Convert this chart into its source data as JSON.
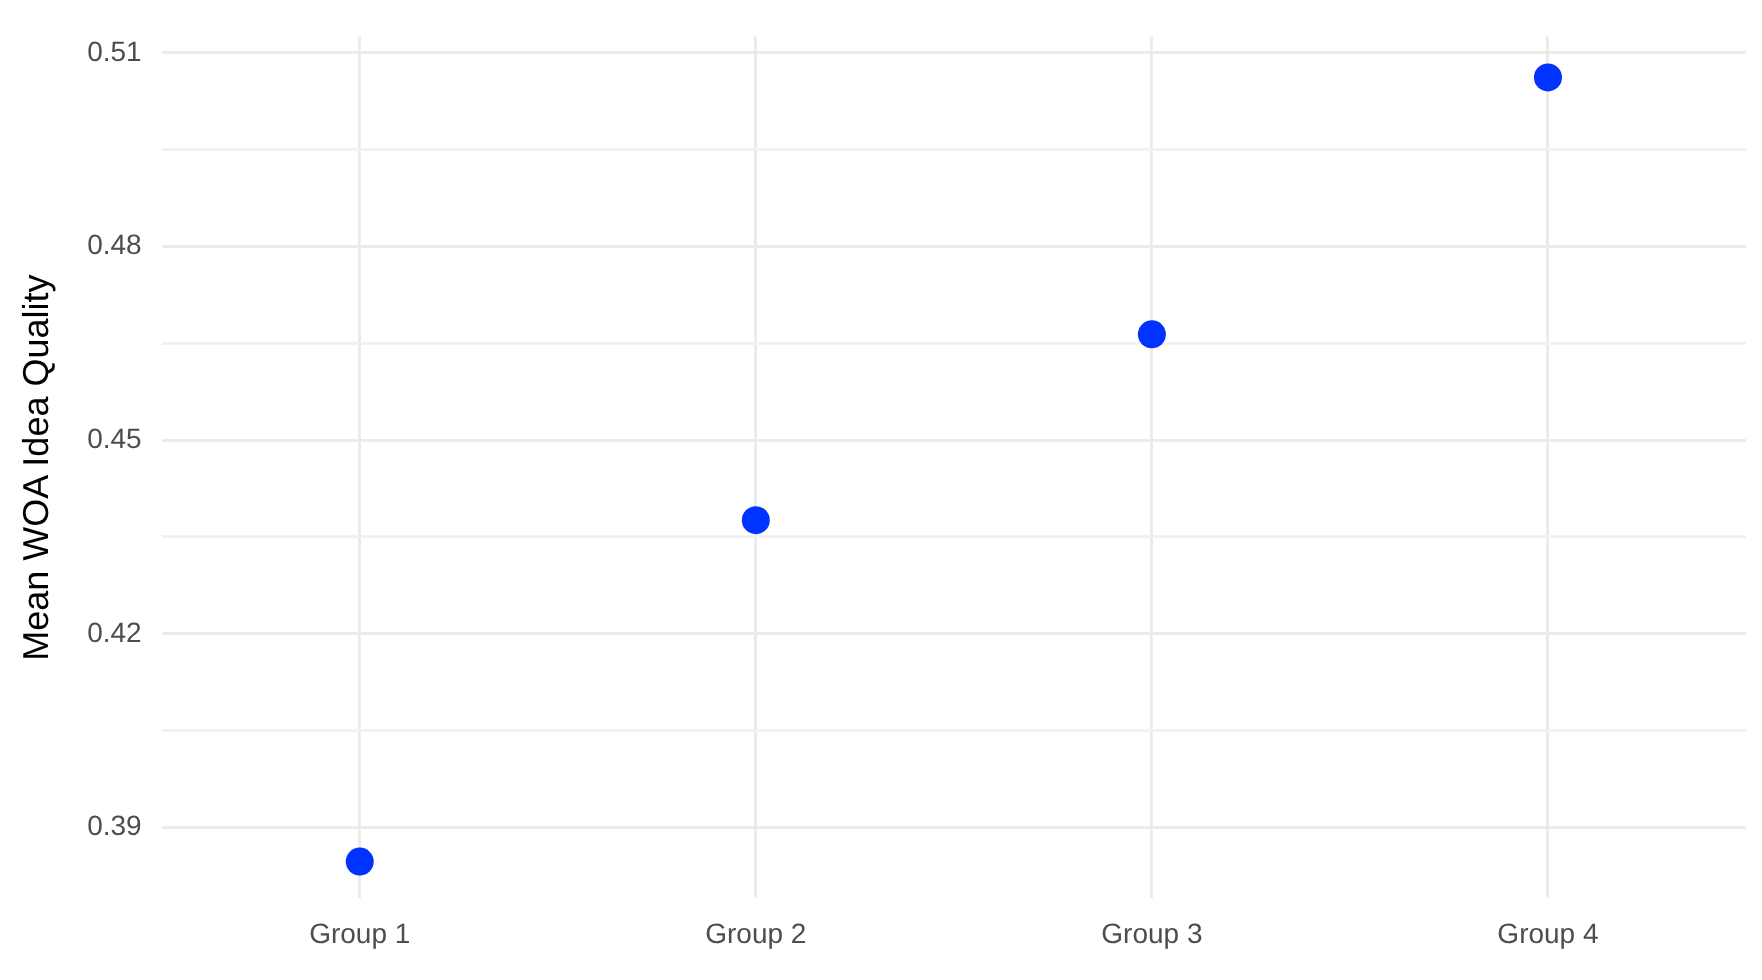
{
  "chart_data": {
    "type": "scatter",
    "ylabel": "Mean WOA Idea Quality",
    "categories": [
      "Group 1",
      "Group 2",
      "Group 3",
      "Group 4"
    ],
    "series": [
      {
        "color": "#0033ff",
        "values": [
          0.3847,
          0.4376,
          0.4664,
          0.5062
        ]
      }
    ],
    "ylim": [
      0.379,
      0.5125
    ],
    "yticks": [
      0.39,
      {
        "value": 0.405,
        "label": null
      },
      0.42,
      {
        "value": 0.435,
        "label": null
      },
      0.45,
      {
        "value": 0.465,
        "label": null
      },
      0.48,
      {
        "value": 0.495,
        "label": null
      },
      0.51
    ],
    "grid": true,
    "marker": "circle"
  }
}
